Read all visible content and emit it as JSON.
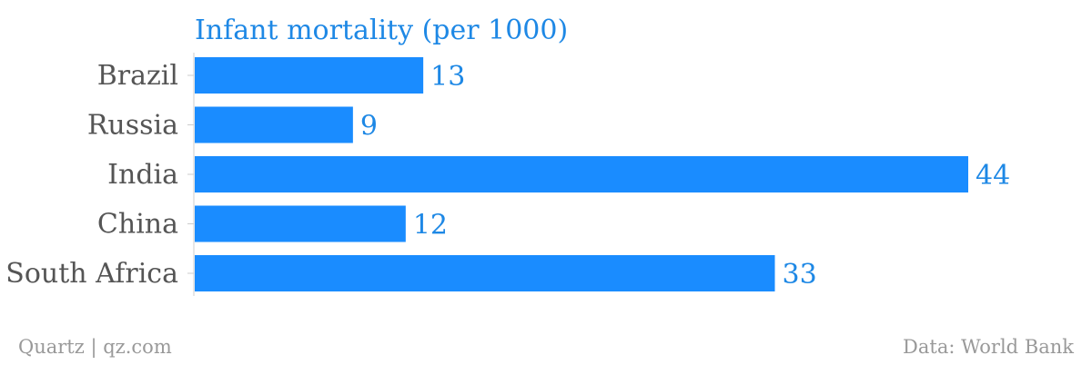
{
  "chart_data": {
    "type": "bar",
    "orientation": "horizontal",
    "title": "Infant mortality (per 1000)",
    "categories": [
      "Brazil",
      "Russia",
      "India",
      "China",
      "South Africa"
    ],
    "values": [
      13,
      9,
      44,
      12,
      33
    ],
    "xlim": [
      0,
      44
    ],
    "grid": false,
    "colors": {
      "bar": "#1a8cff",
      "label": "#1e88e5",
      "category": "#555555"
    }
  },
  "footer": {
    "source_left": "Quartz | qz.com",
    "source_right": "Data: World Bank"
  }
}
